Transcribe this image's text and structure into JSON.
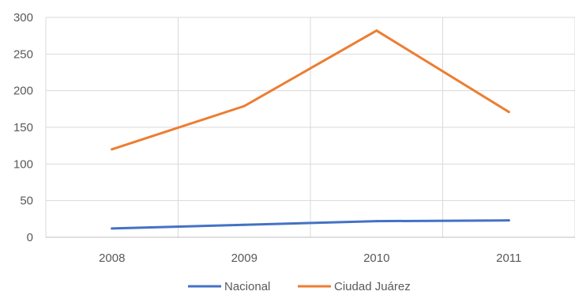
{
  "chart_data": {
    "type": "line",
    "categories": [
      "2008",
      "2009",
      "2010",
      "2011"
    ],
    "series": [
      {
        "name": "Nacional",
        "values": [
          12,
          17,
          22,
          23
        ],
        "color": "#4472c4"
      },
      {
        "name": "Ciudad Juárez",
        "values": [
          120,
          179,
          282,
          171
        ],
        "color": "#ed7d31"
      }
    ],
    "ylim": [
      0,
      300
    ],
    "yticks": [
      "0",
      "50",
      "100",
      "150",
      "200",
      "250",
      "300"
    ],
    "grid": true,
    "legend_position": "bottom"
  }
}
